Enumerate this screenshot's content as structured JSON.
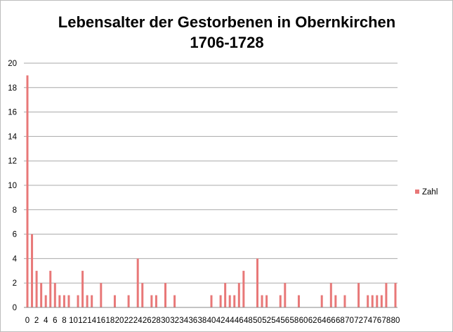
{
  "chart_data": {
    "type": "bar",
    "title": [
      "Lebensalter der Gestorbenen in Obernkirchen",
      "1706-1728"
    ],
    "xlabel": "",
    "ylabel": "",
    "ylim": [
      0,
      20
    ],
    "yticks": [
      0,
      2,
      4,
      6,
      8,
      10,
      12,
      14,
      16,
      18,
      20
    ],
    "grid": true,
    "legend_position": "right",
    "bar_color": "#e87878",
    "categories": [
      "0",
      "1",
      "2",
      "3",
      "4",
      "5",
      "6",
      "7",
      "8",
      "9",
      "10",
      "11",
      "12",
      "13",
      "14",
      "15",
      "16",
      "17",
      "18",
      "19",
      "20",
      "21",
      "22",
      "23",
      "24",
      "25",
      "26",
      "27",
      "28",
      "29",
      "30",
      "31",
      "32",
      "33",
      "34",
      "35",
      "36",
      "37",
      "38",
      "39",
      "40",
      "41",
      "42",
      "43",
      "44",
      "45",
      "46",
      "47",
      "48",
      "49",
      "50",
      "51",
      "52",
      "53",
      "54",
      "55",
      "56",
      "57",
      "58",
      "59",
      "60",
      "61",
      "62",
      "63",
      "64",
      "65",
      "66",
      "67",
      "68",
      "69",
      "70",
      "71",
      "72",
      "73",
      "74",
      "75",
      "76",
      "77",
      "78",
      "79",
      "80"
    ],
    "x_tick_labels": [
      "0",
      "2",
      "4",
      "6",
      "8",
      "10",
      "12",
      "14",
      "16",
      "18",
      "20",
      "22",
      "24",
      "26",
      "28",
      "30",
      "32",
      "34",
      "36",
      "38",
      "40",
      "42",
      "44",
      "46",
      "48",
      "50",
      "52",
      "54",
      "56",
      "58",
      "60",
      "62",
      "64",
      "66",
      "68",
      "70",
      "72",
      "74",
      "76",
      "78",
      "80"
    ],
    "series": [
      {
        "name": "Zahl",
        "values": [
          19,
          6,
          3,
          2,
          1,
          3,
          2,
          1,
          1,
          1,
          0,
          1,
          3,
          1,
          1,
          0,
          2,
          0,
          0,
          1,
          0,
          0,
          1,
          0,
          4,
          2,
          0,
          1,
          1,
          0,
          2,
          0,
          1,
          0,
          0,
          0,
          0,
          0,
          0,
          0,
          1,
          0,
          1,
          2,
          1,
          1,
          2,
          3,
          0,
          0,
          4,
          1,
          1,
          0,
          0,
          1,
          2,
          0,
          0,
          1,
          0,
          0,
          0,
          0,
          1,
          0,
          2,
          1,
          0,
          1,
          0,
          0,
          2,
          0,
          1,
          1,
          1,
          1,
          2,
          0,
          2
        ]
      }
    ]
  }
}
